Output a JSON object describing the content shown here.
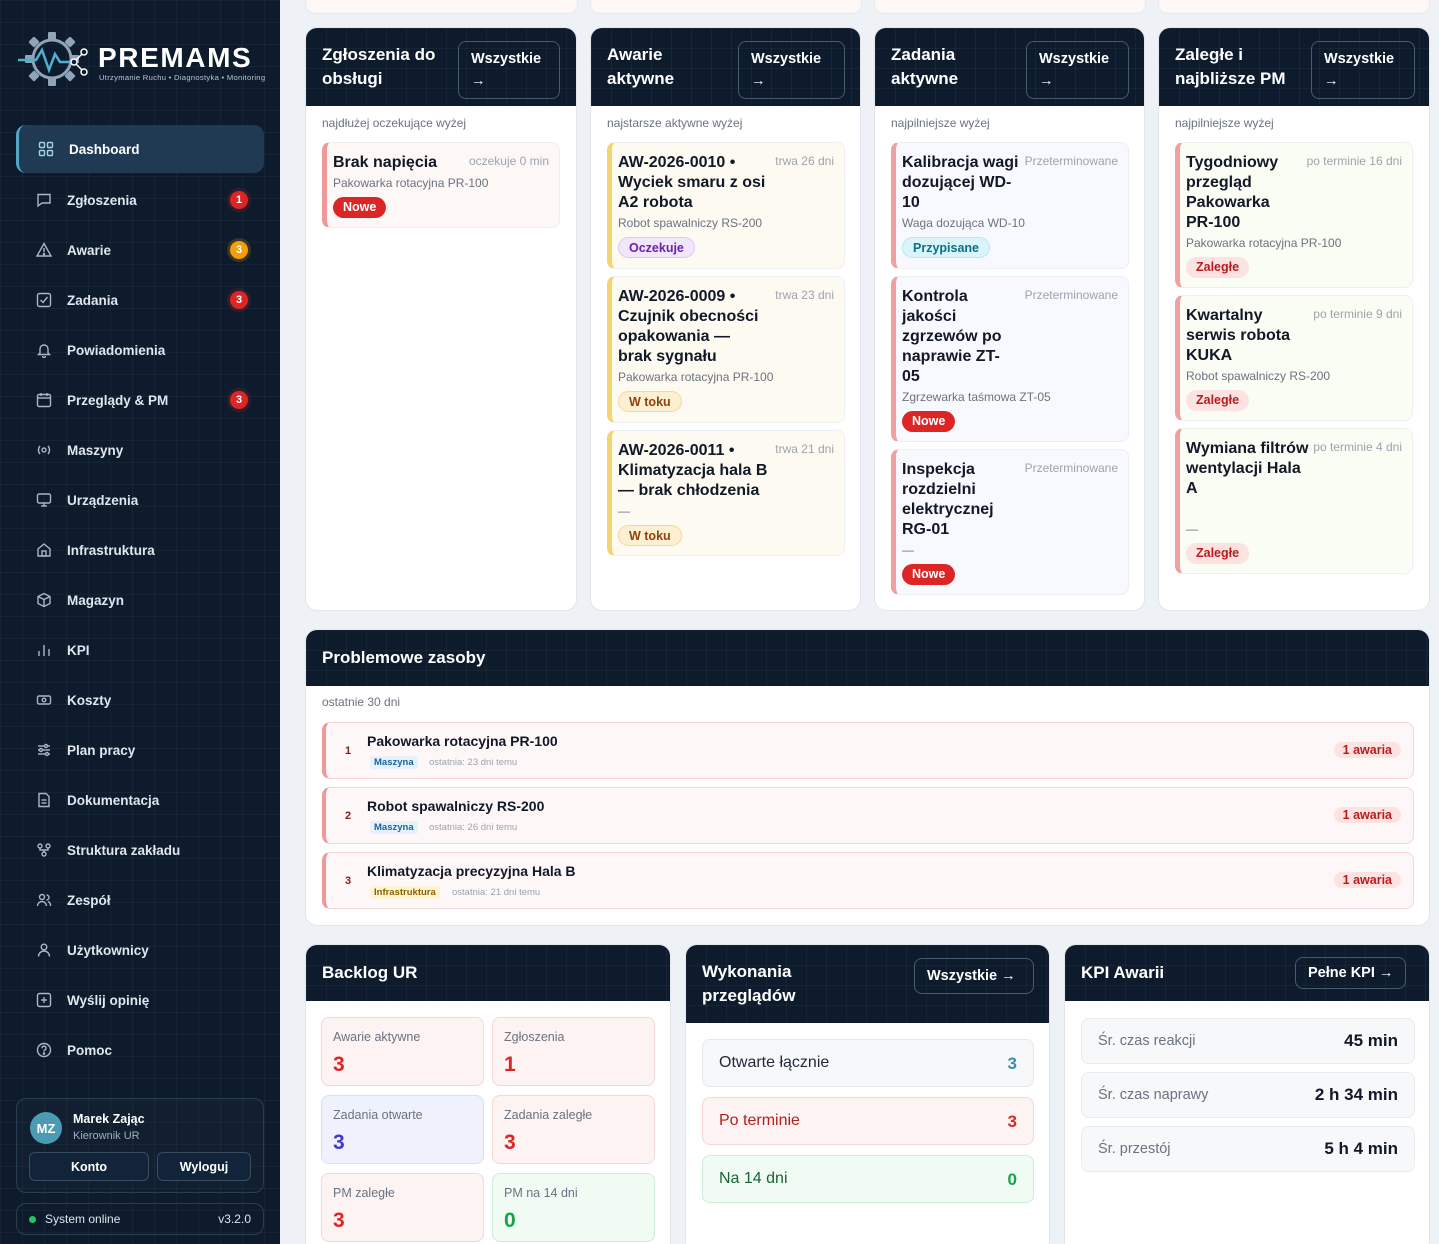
{
  "brand": {
    "name": "PREMAMS",
    "tagline": "Utrzymanie Ruchu • Diagnostyka • Monitoring"
  },
  "nav": [
    {
      "label": "Dashboard",
      "icon": "grid-icon",
      "active": true
    },
    {
      "label": "Zgłoszenia",
      "icon": "message-icon",
      "badge": "1",
      "badge_color": "red"
    },
    {
      "label": "Awarie",
      "icon": "warning-icon",
      "badge": "3",
      "badge_color": "orange"
    },
    {
      "label": "Zadania",
      "icon": "checkbox-icon",
      "badge": "3",
      "badge_color": "red"
    },
    {
      "label": "Powiadomienia",
      "icon": "bell-icon"
    },
    {
      "label": "Przeglądy & PM",
      "icon": "calendar-icon",
      "badge": "3",
      "badge_color": "red"
    },
    {
      "label": "Maszyny",
      "icon": "machine-icon"
    },
    {
      "label": "Urządzenia",
      "icon": "monitor-icon"
    },
    {
      "label": "Infrastruktura",
      "icon": "home-icon"
    },
    {
      "label": "Magazyn",
      "icon": "box-icon"
    },
    {
      "label": "KPI",
      "icon": "bar-chart-icon"
    },
    {
      "label": "Koszty",
      "icon": "banknote-icon"
    },
    {
      "label": "Plan pracy",
      "icon": "sliders-icon"
    },
    {
      "label": "Dokumentacja",
      "icon": "document-icon"
    },
    {
      "label": "Struktura zakładu",
      "icon": "hierarchy-icon"
    },
    {
      "label": "Zespół",
      "icon": "users-icon"
    },
    {
      "label": "Użytkownicy",
      "icon": "user-icon"
    },
    {
      "label": "Wyślij opinię",
      "icon": "feedback-icon"
    },
    {
      "label": "Pomoc",
      "icon": "help-icon"
    }
  ],
  "user": {
    "initials": "MZ",
    "name": "Marek Zając",
    "role": "Kierownik UR",
    "account_label": "Konto",
    "logout_label": "Wyloguj"
  },
  "system": {
    "status": "System online",
    "version": "v3.2.0"
  },
  "all_label": "Wszystkie →",
  "columns": {
    "zgloszenia": {
      "title": "Zgłoszenia do obsługi",
      "subtitle": "najdłużej oczekujące wyżej",
      "items": [
        {
          "title": "Brak napięcia",
          "meta": "oczekuje 0 min",
          "machine": "Pakowarka rotacyjna PR-100",
          "status": "Nowe"
        }
      ]
    },
    "awarie": {
      "title": "Awarie aktywne",
      "subtitle": "najstarsze aktywne wyżej",
      "items": [
        {
          "title": "AW-2026-0010 • Wyciek smaru z osi A2 robota",
          "meta": "trwa 26 dni",
          "machine": "Robot spawalniczy RS-200",
          "status": "Oczekuje"
        },
        {
          "title": "AW-2026-0009 • Czujnik obecności opakowania — brak sygnału",
          "meta": "trwa 23 dni",
          "machine": "Pakowarka rotacyjna PR-100",
          "status": "W toku"
        },
        {
          "title": "AW-2026-0011 • Klimatyzacja hala B — brak chłodzenia",
          "meta": "trwa 21 dni",
          "machine": "—",
          "status": "W toku"
        }
      ]
    },
    "zadania": {
      "title": "Zadania aktywne",
      "subtitle": "najpilniejsze wyżej",
      "items": [
        {
          "title": "Kalibracja wagi dozującej WD-10",
          "meta": "Przeterminowane",
          "machine": "Waga dozująca WD-10",
          "status": "Przypisane"
        },
        {
          "title": "Kontrola jakości zgrzewów po naprawie ZT-05",
          "meta": "Przeterminowane",
          "machine": "Zgrzewarka taśmowa ZT-05",
          "status": "Nowe"
        },
        {
          "title": "Inspekcja rozdzielni elektrycznej RG-01",
          "meta": "Przeterminowane",
          "machine": "—",
          "status": "Nowe"
        }
      ]
    },
    "pm": {
      "title": "Zaległe i najbliższe PM",
      "subtitle": "najpilniejsze wyżej",
      "items": [
        {
          "title": "Tygodniowy przegląd Pakowarka PR-100",
          "meta": "po terminie 16 dni",
          "machine": "Pakowarka rotacyjna PR-100",
          "status": "Zaległe"
        },
        {
          "title": "Kwartalny serwis robota KUKA",
          "meta": "po terminie 9 dni",
          "machine": "Robot spawalniczy RS-200",
          "status": "Zaległe"
        },
        {
          "title": "Wymiana filtrów wentylacji Hala A",
          "meta": "po terminie 4 dni",
          "machine": "—",
          "status": "Zaległe"
        }
      ]
    }
  },
  "problems": {
    "title": "Problemowe zasoby",
    "subtitle": "ostatnie 30 dni",
    "items": [
      {
        "rank": "1",
        "name": "Pakowarka rotacyjna PR-100",
        "type": "Maszyna",
        "last": "ostatnia: 23 dni temu",
        "count": "1 awaria"
      },
      {
        "rank": "2",
        "name": "Robot spawalniczy RS-200",
        "type": "Maszyna",
        "last": "ostatnia: 26 dni temu",
        "count": "1 awaria"
      },
      {
        "rank": "3",
        "name": "Klimatyzacja precyzyjna Hala B",
        "type": "Infrastruktura",
        "last": "ostatnia: 21 dni temu",
        "count": "1 awaria"
      }
    ]
  },
  "backlog": {
    "title": "Backlog UR",
    "tiles": [
      {
        "label": "Awarie aktywne",
        "value": "3"
      },
      {
        "label": "Zgłoszenia",
        "value": "1"
      },
      {
        "label": "Zadania otwarte",
        "value": "3"
      },
      {
        "label": "Zadania zaległe",
        "value": "3"
      },
      {
        "label": "PM zaległe",
        "value": "3"
      },
      {
        "label": "PM na 14 dni",
        "value": "0"
      }
    ]
  },
  "inspections": {
    "title": "Wykonania przeglądów",
    "rows": [
      {
        "label": "Otwarte łącznie",
        "value": "3"
      },
      {
        "label": "Po terminie",
        "value": "3"
      },
      {
        "label": "Na 14 dni",
        "value": "0"
      }
    ]
  },
  "kpi": {
    "title": "KPI Awarii",
    "button": "Pełne KPI →",
    "rows": [
      {
        "label": "Śr. czas reakcji",
        "value": "45 min"
      },
      {
        "label": "Śr. czas naprawy",
        "value": "2 h 34 min"
      },
      {
        "label": "Śr. przestój",
        "value": "5 h 4 min"
      }
    ]
  }
}
